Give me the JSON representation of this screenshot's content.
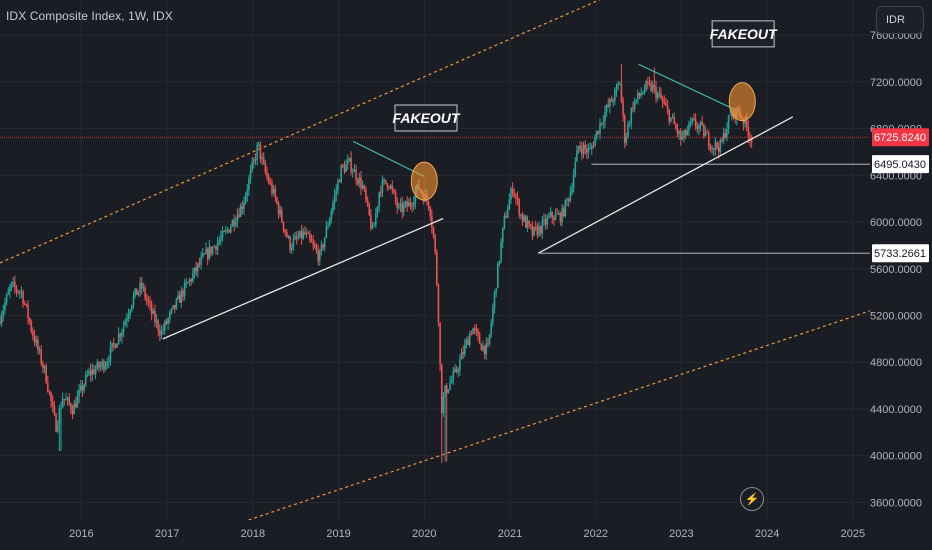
{
  "header": {
    "title": "IDX Composite Index, 1W, IDX",
    "currency_label": "IDR"
  },
  "controls": {
    "flash_glyph": "⚡"
  },
  "colors": {
    "background": "#1b1d25",
    "grid": "#262933",
    "up": "#26a69a",
    "down": "#ef5350",
    "trendline": "#e6e6e6",
    "resistance": "#3fc4b1",
    "channel": "#e89b3c",
    "price_line": "#d9393f",
    "axis_text": "#b2b5be",
    "fakeout_fill": "#f3922e"
  },
  "chart_data": {
    "type": "candlestick",
    "title": "IDX Composite Index, 1W, IDX",
    "timeframe": "1W",
    "currency": "IDR",
    "x_ticks": [
      "2016",
      "2017",
      "2018",
      "2019",
      "2020",
      "2021",
      "2022",
      "2023",
      "2024",
      "2025"
    ],
    "y_ticks": [
      "3600.0000",
      "4000.0000",
      "4400.0000",
      "4800.0000",
      "5200.0000",
      "5600.0000",
      "6000.0000",
      "6400.0000",
      "6800.0000",
      "7200.0000",
      "7600.0000"
    ],
    "ylim": [
      3450,
      7900
    ],
    "xlim": [
      2015.05,
      2025.2
    ],
    "last_price": {
      "label": "6725.8240",
      "value": 6725.824,
      "color": "#f23645"
    },
    "price_tags": [
      {
        "label": "6495.0430",
        "value": 6495.043
      },
      {
        "label": "5733.2661",
        "value": 5733.2661
      }
    ],
    "horizontal_lines": [
      {
        "value": 6495,
        "x_from": 2021.95
      },
      {
        "value": 5733,
        "x_from": 2021.33
      }
    ],
    "path_points": [
      {
        "t": 2015.05,
        "p": 5150
      },
      {
        "t": 2015.2,
        "p": 5450
      },
      {
        "t": 2015.32,
        "p": 5400
      },
      {
        "t": 2015.45,
        "p": 5050
      },
      {
        "t": 2015.6,
        "p": 4700
      },
      {
        "t": 2015.72,
        "p": 4250
      },
      {
        "t": 2015.8,
        "p": 4500
      },
      {
        "t": 2015.92,
        "p": 4400
      },
      {
        "t": 2016.1,
        "p": 4700
      },
      {
        "t": 2016.3,
        "p": 4800
      },
      {
        "t": 2016.5,
        "p": 5100
      },
      {
        "t": 2016.62,
        "p": 5350
      },
      {
        "t": 2016.72,
        "p": 5450
      },
      {
        "t": 2016.85,
        "p": 5200
      },
      {
        "t": 2016.95,
        "p": 5050
      },
      {
        "t": 2017.2,
        "p": 5400
      },
      {
        "t": 2017.45,
        "p": 5700
      },
      {
        "t": 2017.7,
        "p": 5900
      },
      {
        "t": 2017.9,
        "p": 6150
      },
      {
        "t": 2018.08,
        "p": 6650
      },
      {
        "t": 2018.15,
        "p": 6450
      },
      {
        "t": 2018.28,
        "p": 6200
      },
      {
        "t": 2018.45,
        "p": 5800
      },
      {
        "t": 2018.62,
        "p": 5900
      },
      {
        "t": 2018.8,
        "p": 5700
      },
      {
        "t": 2018.95,
        "p": 6150
      },
      {
        "t": 2019.05,
        "p": 6450
      },
      {
        "t": 2019.15,
        "p": 6500
      },
      {
        "t": 2019.3,
        "p": 6300
      },
      {
        "t": 2019.42,
        "p": 5900
      },
      {
        "t": 2019.5,
        "p": 6300
      },
      {
        "t": 2019.6,
        "p": 6350
      },
      {
        "t": 2019.72,
        "p": 6100
      },
      {
        "t": 2019.85,
        "p": 6150
      },
      {
        "t": 2019.95,
        "p": 6300
      },
      {
        "t": 2020.08,
        "p": 6150
      },
      {
        "t": 2020.14,
        "p": 5800
      },
      {
        "t": 2020.18,
        "p": 5300
      },
      {
        "t": 2020.22,
        "p": 4400
      },
      {
        "t": 2020.26,
        "p": 4550
      },
      {
        "t": 2020.38,
        "p": 4700
      },
      {
        "t": 2020.48,
        "p": 4900
      },
      {
        "t": 2020.58,
        "p": 5100
      },
      {
        "t": 2020.68,
        "p": 4950
      },
      {
        "t": 2020.76,
        "p": 4900
      },
      {
        "t": 2020.86,
        "p": 5500
      },
      {
        "t": 2020.95,
        "p": 6000
      },
      {
        "t": 2021.05,
        "p": 6300
      },
      {
        "t": 2021.15,
        "p": 6050
      },
      {
        "t": 2021.28,
        "p": 5900
      },
      {
        "t": 2021.38,
        "p": 5950
      },
      {
        "t": 2021.5,
        "p": 6050
      },
      {
        "t": 2021.62,
        "p": 6050
      },
      {
        "t": 2021.72,
        "p": 6250
      },
      {
        "t": 2021.82,
        "p": 6650
      },
      {
        "t": 2021.95,
        "p": 6600
      },
      {
        "t": 2022.1,
        "p": 6900
      },
      {
        "t": 2022.25,
        "p": 7100
      },
      {
        "t": 2022.3,
        "p": 7200
      },
      {
        "t": 2022.36,
        "p": 6700
      },
      {
        "t": 2022.45,
        "p": 7000
      },
      {
        "t": 2022.6,
        "p": 7150
      },
      {
        "t": 2022.68,
        "p": 7150
      },
      {
        "t": 2022.78,
        "p": 7050
      },
      {
        "t": 2022.92,
        "p": 6850
      },
      {
        "t": 2023.02,
        "p": 6700
      },
      {
        "t": 2023.15,
        "p": 6850
      },
      {
        "t": 2023.25,
        "p": 6800
      },
      {
        "t": 2023.38,
        "p": 6650
      },
      {
        "t": 2023.48,
        "p": 6650
      },
      {
        "t": 2023.58,
        "p": 6900
      },
      {
        "t": 2023.68,
        "p": 6950
      },
      {
        "t": 2023.76,
        "p": 6850
      },
      {
        "t": 2023.82,
        "p": 6726
      }
    ],
    "extremes": [
      {
        "t": 2015.75,
        "p": 4040
      },
      {
        "t": 2020.2,
        "p": 3937
      },
      {
        "t": 2020.25,
        "p": 3950
      },
      {
        "t": 2018.08,
        "p": 6690
      },
      {
        "t": 2022.3,
        "p": 7350
      },
      {
        "t": 2022.68,
        "p": 7320
      }
    ],
    "annotations": [
      {
        "type": "label",
        "text": "FAKEOUT",
        "t": 2020.02,
        "p": 6890
      },
      {
        "type": "label",
        "text": "FAKEOUT",
        "t": 2023.72,
        "p": 7610
      },
      {
        "type": "circle",
        "t": 2020.0,
        "p": 6350
      },
      {
        "type": "circle",
        "t": 2023.71,
        "p": 7030
      }
    ],
    "trendlines": [
      {
        "kind": "support",
        "from": {
          "t": 2016.95,
          "p": 5000
        },
        "to": {
          "t": 2020.22,
          "p": 6030
        }
      },
      {
        "kind": "support",
        "from": {
          "t": 2021.33,
          "p": 5733
        },
        "to": {
          "t": 2024.3,
          "p": 6900
        }
      },
      {
        "kind": "resistance",
        "from": {
          "t": 2019.17,
          "p": 6690
        },
        "to": {
          "t": 2020.0,
          "p": 6390
        }
      },
      {
        "kind": "resistance",
        "from": {
          "t": 2022.5,
          "p": 7350
        },
        "to": {
          "t": 2023.6,
          "p": 6970
        }
      },
      {
        "kind": "channel",
        "from": {
          "t": 2015.05,
          "p": 5650
        },
        "to": {
          "t": 2022.35,
          "p": 8000
        }
      },
      {
        "kind": "channel",
        "from": {
          "t": 2017.95,
          "p": 3450
        },
        "to": {
          "t": 2025.2,
          "p": 5240
        }
      }
    ]
  }
}
